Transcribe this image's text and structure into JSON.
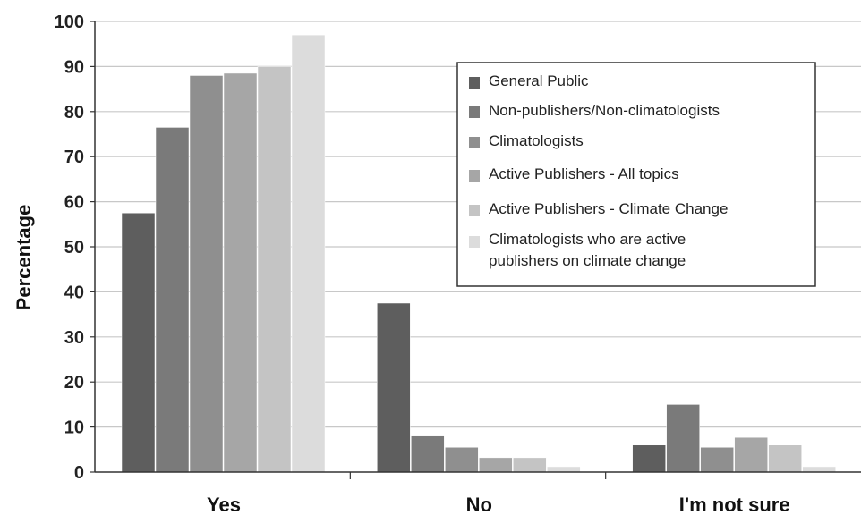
{
  "chart_data": {
    "type": "bar",
    "title": "",
    "xlabel": "",
    "ylabel": "Percentage",
    "ylim": [
      0,
      100
    ],
    "yticks": [
      0,
      10,
      20,
      30,
      40,
      50,
      60,
      70,
      80,
      90,
      100
    ],
    "grid": true,
    "legend_position": "top-right",
    "categories": [
      "Yes",
      "No",
      "I'm not sure"
    ],
    "series": [
      {
        "name": "General Public",
        "values": [
          57.5,
          37.5,
          6
        ],
        "color": "#5e5e5e"
      },
      {
        "name": "Non-publishers/Non-climatologists",
        "values": [
          76.5,
          8,
          15
        ],
        "color": "#7a7a7a"
      },
      {
        "name": "Climatologists",
        "values": [
          88,
          5.5,
          5.5
        ],
        "color": "#8f8f8f"
      },
      {
        "name": "Active Publishers - All topics",
        "values": [
          88.5,
          3.2,
          7.7
        ],
        "color": "#a6a6a6"
      },
      {
        "name": "Active Publishers - Climate Change",
        "values": [
          90,
          3.2,
          6
        ],
        "color": "#c4c4c4"
      },
      {
        "name": "Climatologists who are active publishers on climate change",
        "values": [
          97,
          1.2,
          1.2
        ],
        "color": "#dcdcdc"
      }
    ]
  }
}
